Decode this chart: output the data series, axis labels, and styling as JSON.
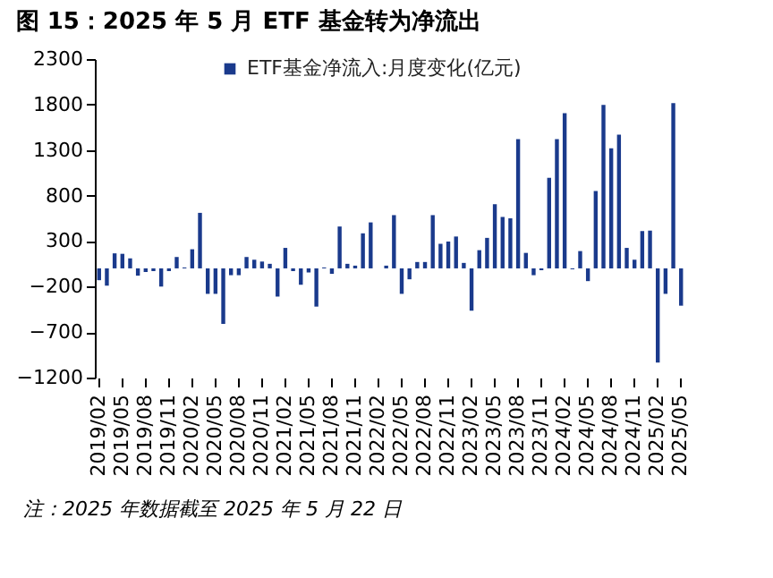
{
  "chart_data": {
    "type": "bar",
    "title": "图 15：2025 年 5 月 ETF 基金转为净流出",
    "categories": [
      "2019/02",
      null,
      null,
      "2019/05",
      null,
      null,
      "2019/08",
      null,
      null,
      "2019/11",
      null,
      null,
      "2020/02",
      null,
      null,
      "2020/05",
      null,
      null,
      "2020/08",
      null,
      null,
      "2020/11",
      null,
      null,
      "2021/02",
      null,
      null,
      "2021/05",
      null,
      null,
      "2021/08",
      null,
      null,
      "2021/11",
      null,
      null,
      "2022/02",
      null,
      null,
      "2022/05",
      null,
      null,
      "2022/08",
      null,
      null,
      "2022/11",
      null,
      null,
      "2023/02",
      null,
      null,
      "2023/05",
      null,
      null,
      "2023/08",
      null,
      null,
      "2023/11",
      null,
      null,
      "2024/02",
      null,
      null,
      "2024/05",
      null,
      null,
      "2024/08",
      null,
      null,
      "2024/11",
      null,
      null,
      "2025/02",
      null,
      null,
      "2025/05"
    ],
    "series": [
      {
        "name": "ETF基金净流入:月度变化(亿元)",
        "color": "#1a3a8c",
        "values": [
          -130,
          -190,
          165,
          160,
          110,
          -80,
          -40,
          -30,
          -200,
          -30,
          125,
          10,
          210,
          610,
          -280,
          -280,
          -610,
          -75,
          -75,
          125,
          95,
          75,
          50,
          -310,
          225,
          -30,
          -180,
          -45,
          -420,
          10,
          -60,
          460,
          50,
          30,
          385,
          505,
          0,
          30,
          585,
          -280,
          -120,
          70,
          70,
          585,
          270,
          295,
          350,
          60,
          -465,
          200,
          335,
          705,
          565,
          550,
          1420,
          170,
          -75,
          -20,
          995,
          1420,
          1705,
          -10,
          190,
          -140,
          850,
          1795,
          1320,
          1470,
          225,
          95,
          410,
          415,
          -1035,
          -280,
          1815,
          -410
        ]
      }
    ],
    "ylim": [
      -1200,
      2300
    ],
    "yticks": [
      -1200,
      -700,
      -200,
      300,
      800,
      1300,
      1800,
      2300
    ],
    "grid": false,
    "legend": "top",
    "annotations": [
      "注：2025 年数据截至 2025 年 5 月 22 日"
    ]
  }
}
